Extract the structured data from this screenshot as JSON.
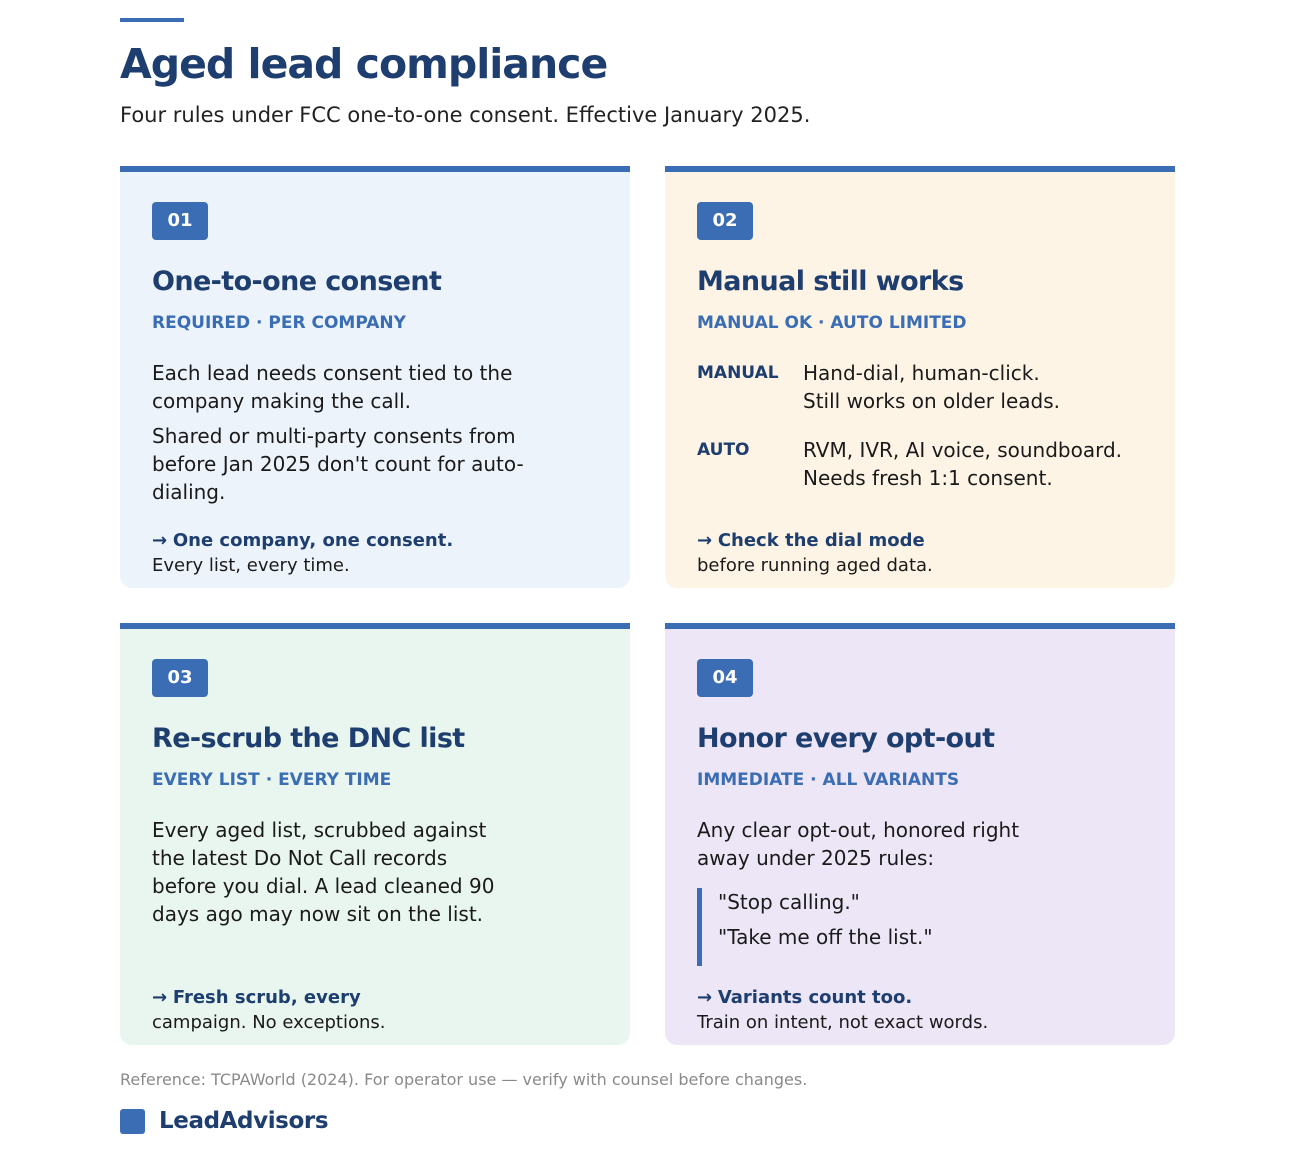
{
  "header": {
    "title": "Aged lead compliance",
    "subtitle": "Four rules under FCC one-to-one consent. Effective January 2025."
  },
  "cards": [
    {
      "number": "01",
      "title": "One-to-one consent",
      "tag": "REQUIRED · PER COMPANY",
      "paragraphs": [
        "Each lead needs consent tied to the company making the call.",
        "Shared or multi-party consents from before Jan 2025 don't count for auto-dialing."
      ],
      "takeaway_arrow": "→",
      "takeaway_strong": "One company, one consent.",
      "takeaway_text": "Every list, every time."
    },
    {
      "number": "02",
      "title": "Manual still works",
      "tag": "MANUAL OK · AUTO LIMITED",
      "modes": [
        {
          "key": "MANUAL",
          "lines": [
            "Hand-dial, human-click.",
            "Still works on older leads."
          ]
        },
        {
          "key": "AUTO",
          "lines": [
            "RVM, IVR, AI voice, soundboard.",
            "Needs fresh 1:1 consent."
          ]
        }
      ],
      "takeaway_arrow": "→",
      "takeaway_strong": "Check the dial mode",
      "takeaway_text": "before running aged data."
    },
    {
      "number": "03",
      "title": "Re-scrub the DNC list",
      "tag": "EVERY LIST · EVERY TIME",
      "paragraphs": [
        "Every aged list, scrubbed against the latest Do Not Call records before you dial. A lead cleaned 90 days ago may now sit on the list."
      ],
      "takeaway_arrow": "→",
      "takeaway_strong": "Fresh scrub, every",
      "takeaway_text": "campaign. No exceptions."
    },
    {
      "number": "04",
      "title": "Honor every opt-out",
      "tag": "IMMEDIATE · ALL VARIANTS",
      "paragraphs": [
        "Any clear opt-out, honored right away under 2025 rules:"
      ],
      "quotes": [
        "\"Stop calling.\"",
        "\"Take me off the list.\""
      ],
      "takeaway_arrow": "→",
      "takeaway_strong": "Variants count too.",
      "takeaway_text": "Train on intent, not exact words."
    }
  ],
  "footer": {
    "reference": "Reference: TCPAWorld (2024). For operator use — verify with counsel before changes.",
    "brand": "LeadAdvisors"
  },
  "colors": {
    "accent": "#3a6db3",
    "heading": "#1d3e6e",
    "card1_bg": "#edf3fb",
    "card2_bg": "#fdf4e6",
    "card3_bg": "#e9f5ef",
    "card4_bg": "#ede6f7"
  }
}
